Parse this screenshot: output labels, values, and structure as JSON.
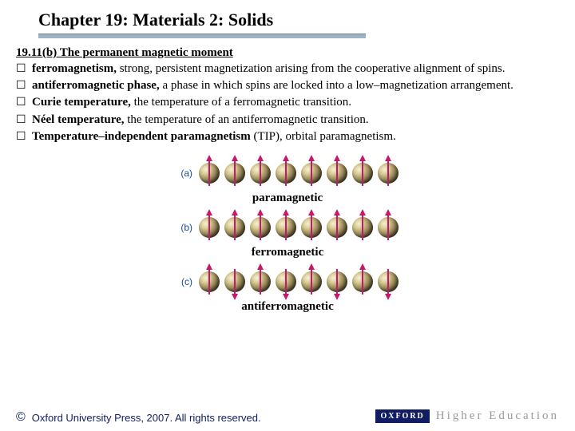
{
  "title": "Chapter 19: Materials 2: Solids",
  "section_head": "19.11(b) The permanent magnetic moment",
  "bullets": [
    {
      "bold": "ferromagnetism,",
      "rest": " strong, persistent magnetization arising from the cooperative alignment of spins."
    },
    {
      "bold": "antiferromagnetic phase,",
      "rest": " a phase in which spins are locked into a low–magnetization arrangement."
    },
    {
      "bold": "Curie temperature,",
      "rest": " the temperature of a ferromagnetic transition."
    },
    {
      "bold": "Néel temperature,",
      "rest": " the temperature of an antiferromagnetic transition."
    },
    {
      "bold": "Temperature–independent paramagnetism",
      "rest": " (TIP), orbital paramagnetism."
    }
  ],
  "figs": {
    "sphere_count": 8,
    "sphere_colors": {
      "highlight": "#f6f1d8",
      "mid": "#d6c891",
      "shade": "#4a4228",
      "dark": "#1c1a0d"
    },
    "arrow_color": "#c11a6b",
    "rows": [
      {
        "label": "(a)",
        "pattern": "all_up",
        "caption": "paramagnetic"
      },
      {
        "label": "(b)",
        "pattern": "all_up",
        "caption": "ferromagnetic"
      },
      {
        "label": "(c)",
        "pattern": "alternating",
        "caption": "antiferromagnetic"
      }
    ]
  },
  "footer": {
    "copyright": "©",
    "press": "Oxford University Press, 2007. All rights reserved.",
    "badge": "OXFORD",
    "he": "Higher Education"
  },
  "colors": {
    "underline": "#9fb2c3",
    "ox_blue": "#111d63",
    "he_grey": "#9a9a9a",
    "label_blue": "#1b4aa0"
  }
}
